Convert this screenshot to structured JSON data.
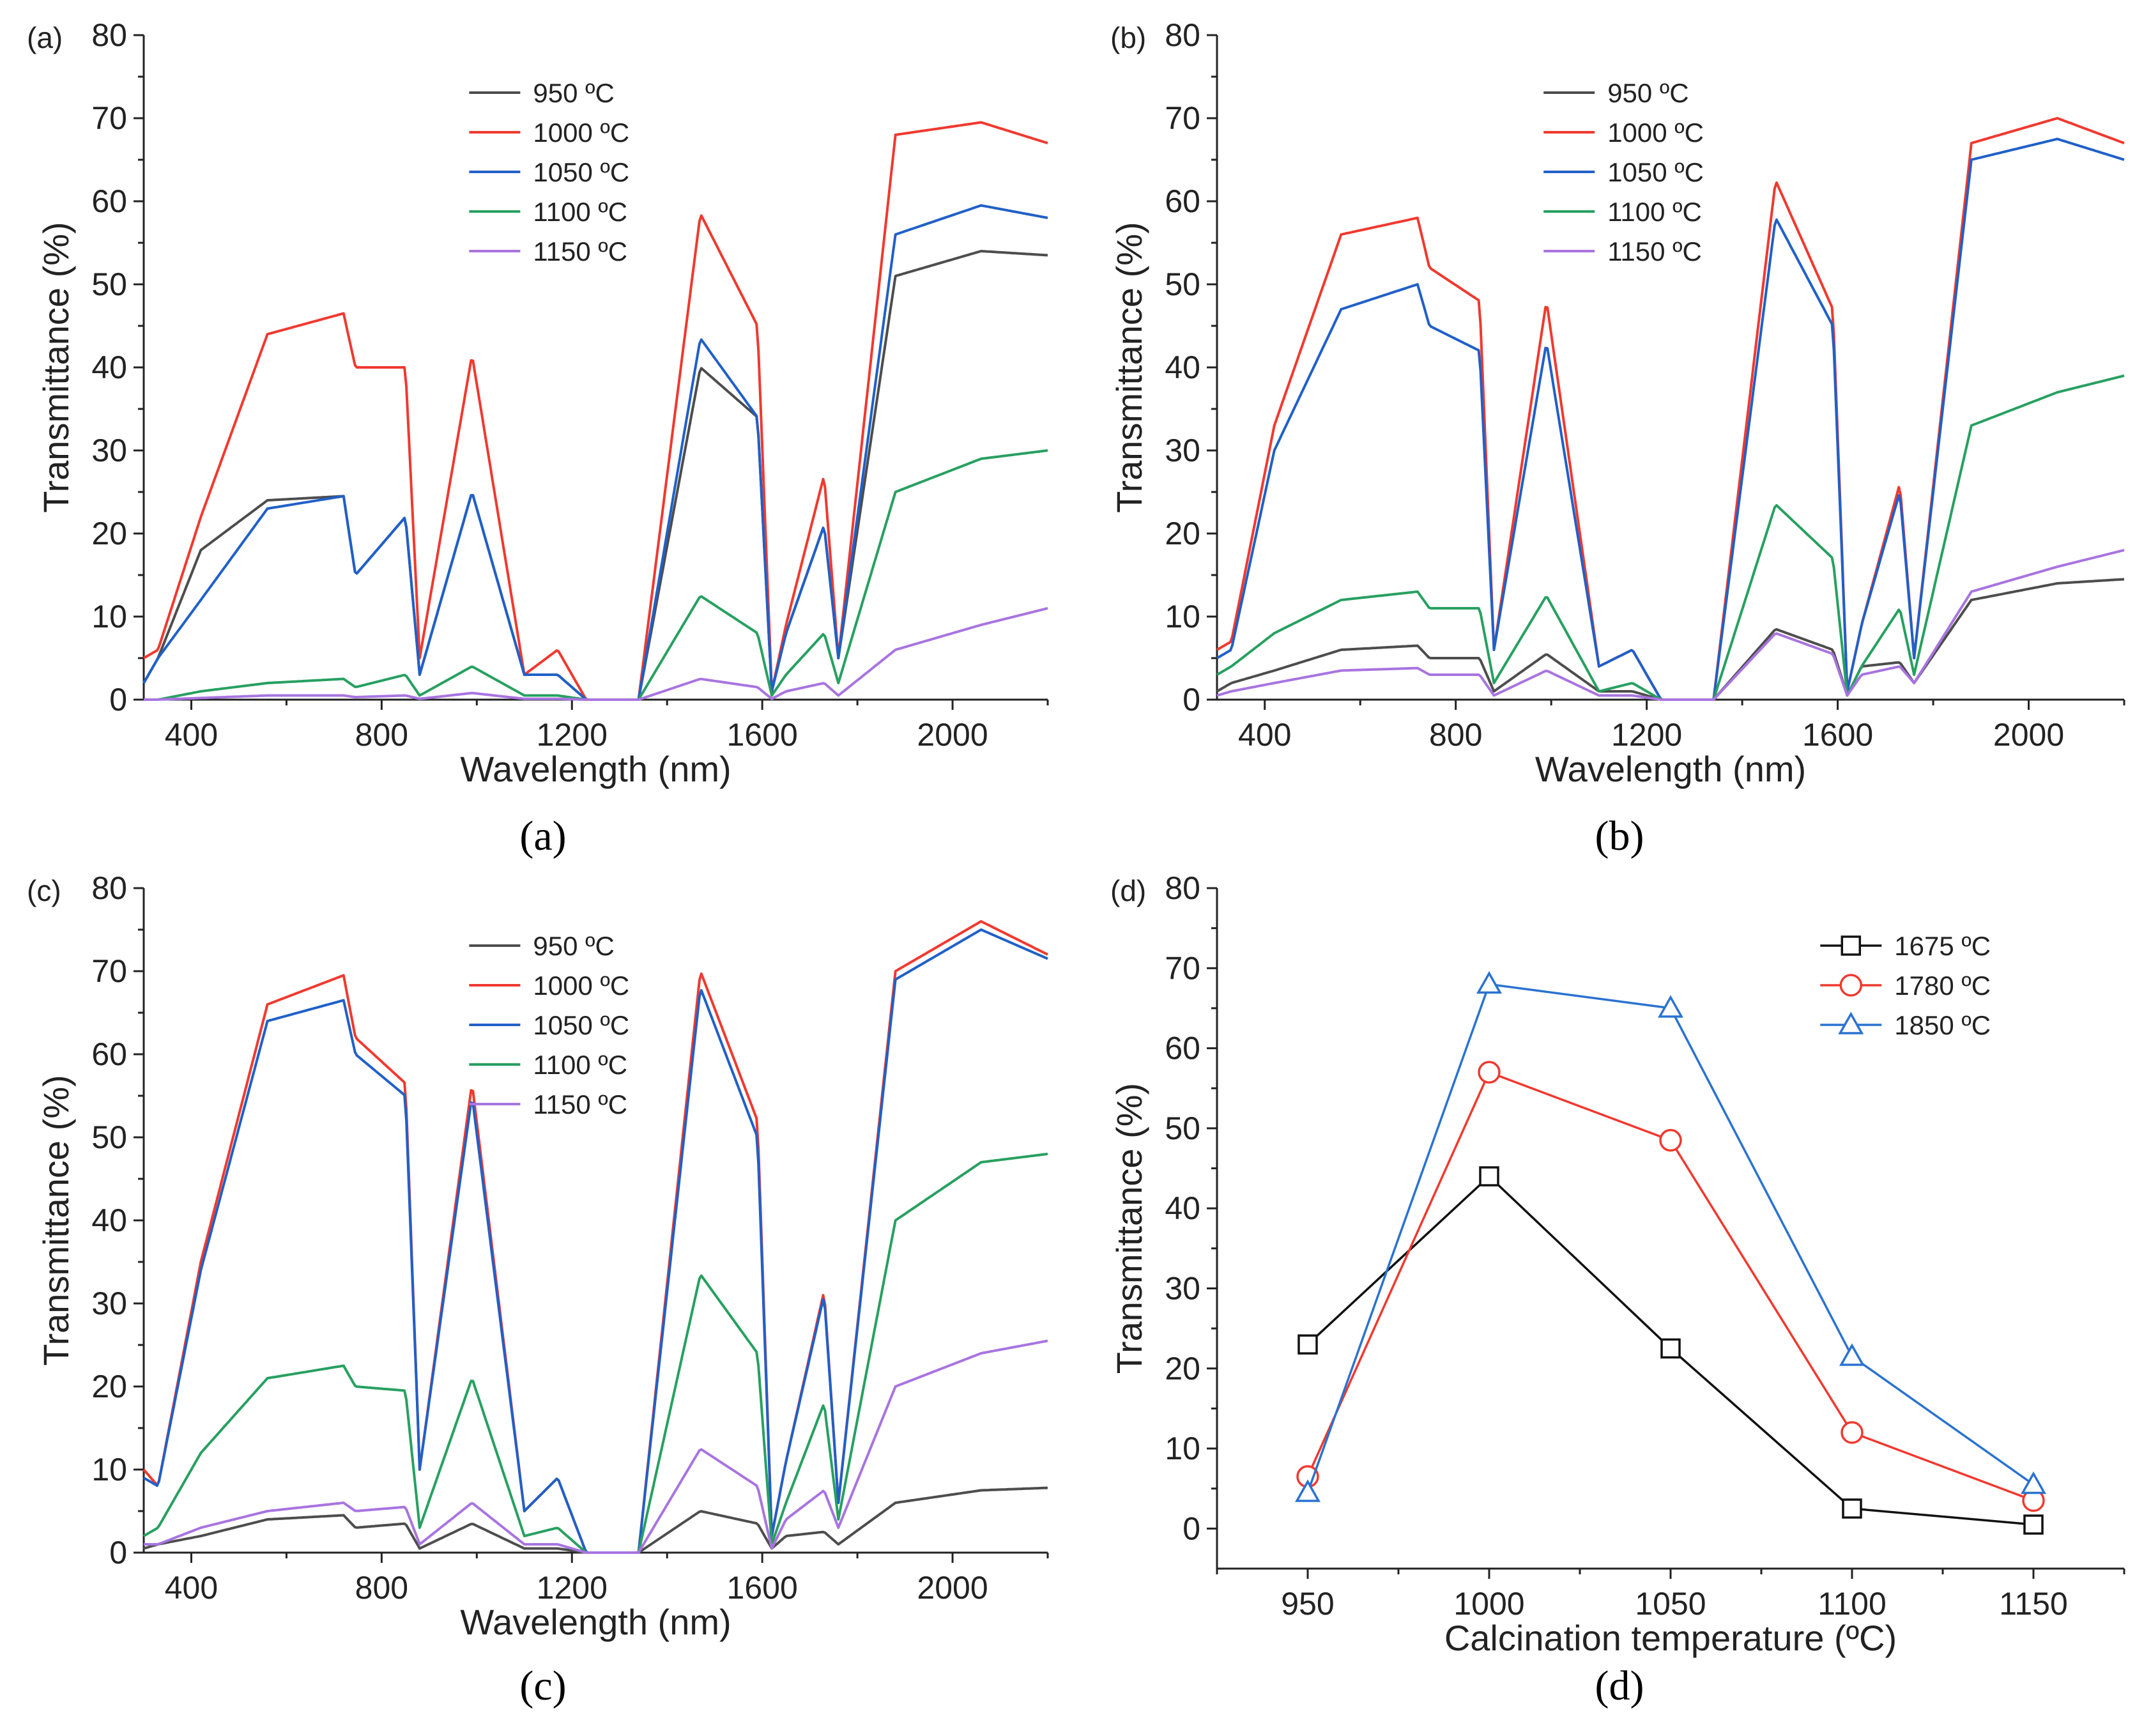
{
  "colors": {
    "950": "#4d4d4d",
    "1000": "#f0392f",
    "1050": "#2060c8",
    "1100": "#27a060",
    "1150": "#a874e0",
    "d1675": "#111111",
    "d1780": "#f0392f",
    "d1850": "#2a72d0"
  },
  "chart_data": [
    {
      "panel": "a",
      "corner_label": "(a)",
      "caption": "(a)",
      "type": "line",
      "xlabel": "Wavelength (nm)",
      "ylabel": "Transmittance (%)",
      "xlim": [
        300,
        2200
      ],
      "ylim": [
        0,
        80
      ],
      "xticks": [
        400,
        800,
        1200,
        1600,
        2000
      ],
      "yticks": [
        0,
        10,
        20,
        30,
        40,
        50,
        60,
        70,
        80
      ],
      "legend_position": "top-center",
      "series": [
        {
          "name": "950 ºC",
          "key": "950",
          "y": [
            2,
            5,
            18,
            24,
            24.5,
            15,
            22,
            3,
            25,
            3,
            3,
            0,
            0,
            40,
            34,
            1,
            8,
            21,
            5,
            51,
            54,
            53.5
          ]
        },
        {
          "name": "1000 ºC",
          "key": "1000",
          "y": [
            5,
            6,
            22,
            44,
            46.5,
            40,
            40,
            5,
            41.5,
            3,
            6,
            0,
            0,
            58.5,
            45,
            1,
            9,
            27,
            5,
            68,
            69.5,
            67
          ]
        },
        {
          "name": "1050 ºC",
          "key": "1050",
          "y": [
            2,
            5,
            12,
            23,
            24.5,
            15,
            22,
            3,
            25,
            3,
            3,
            0,
            0,
            43.5,
            34,
            1,
            8,
            21,
            5,
            56,
            59.5,
            58
          ]
        },
        {
          "name": "1100 ºC",
          "key": "1100",
          "y": [
            0,
            0,
            1,
            2,
            2.5,
            1.5,
            3,
            0.5,
            4,
            0.5,
            0.5,
            0,
            0,
            12.5,
            8,
            0.5,
            3,
            8,
            2,
            25,
            29,
            30
          ]
        },
        {
          "name": "1150 ºC",
          "key": "1150",
          "y": [
            0,
            0,
            0.2,
            0.5,
            0.5,
            0.3,
            0.5,
            0.1,
            0.8,
            0.1,
            0.1,
            0,
            0,
            2.5,
            1.5,
            0.1,
            1,
            2,
            0.5,
            6,
            9,
            11
          ]
        }
      ]
    },
    {
      "panel": "b",
      "corner_label": "(b)",
      "caption": "(b)",
      "type": "line",
      "xlabel": "Wavelength (nm)",
      "ylabel": "Transmittance (%)",
      "xlim": [
        300,
        2200
      ],
      "ylim": [
        0,
        80
      ],
      "xticks": [
        400,
        800,
        1200,
        1600,
        2000
      ],
      "yticks": [
        0,
        10,
        20,
        30,
        40,
        50,
        60,
        70,
        80
      ],
      "legend_position": "top-center",
      "series": [
        {
          "name": "950 ºC",
          "key": "950",
          "y": [
            1,
            2,
            3.5,
            6,
            6.5,
            5,
            5,
            1,
            5.5,
            1,
            1,
            0,
            0,
            8.5,
            6,
            0.5,
            4,
            4.5,
            2,
            12,
            14,
            14.5
          ]
        },
        {
          "name": "1000 ºC",
          "key": "1000",
          "y": [
            6,
            7,
            33,
            56,
            58,
            52,
            48,
            6,
            48,
            4,
            6,
            0,
            0,
            62.5,
            47,
            1,
            9,
            26,
            5,
            67,
            70,
            67
          ]
        },
        {
          "name": "1050 ºC",
          "key": "1050",
          "y": [
            5,
            6,
            30,
            47,
            50,
            45,
            42,
            6,
            43,
            4,
            6,
            0,
            0,
            58,
            45,
            1,
            9,
            25,
            5,
            65,
            67.5,
            65
          ]
        },
        {
          "name": "1100 ºC",
          "key": "1100",
          "y": [
            3,
            4,
            8,
            12,
            13,
            11,
            11,
            2,
            12.5,
            1,
            2,
            0,
            0,
            23.5,
            17,
            0.5,
            4,
            11,
            3,
            33,
            37,
            39
          ]
        },
        {
          "name": "1150 ºC",
          "key": "1150",
          "y": [
            0.5,
            1,
            2,
            3.5,
            3.8,
            3,
            3,
            0.5,
            3.5,
            0.5,
            0.5,
            0,
            0,
            8,
            5.5,
            0.5,
            3,
            4,
            2,
            13,
            16,
            18
          ]
        }
      ]
    },
    {
      "panel": "c",
      "corner_label": "(c)",
      "caption": "(c)",
      "type": "line",
      "xlabel": "Wavelength (nm)",
      "ylabel": "Transmittance (%)",
      "xlim": [
        300,
        2200
      ],
      "ylim": [
        0,
        80
      ],
      "xticks": [
        400,
        800,
        1200,
        1600,
        2000
      ],
      "yticks": [
        0,
        10,
        20,
        30,
        40,
        50,
        60,
        70,
        80
      ],
      "legend_position": "top-center",
      "series": [
        {
          "name": "950 ºC",
          "key": "950",
          "y": [
            0.5,
            1,
            2,
            4,
            4.5,
            3,
            3.5,
            0.5,
            3.5,
            0.5,
            0.5,
            0,
            0,
            5,
            3.5,
            0.5,
            2,
            2.5,
            1,
            6,
            7.5,
            7.8
          ]
        },
        {
          "name": "1000 ºC",
          "key": "1000",
          "y": [
            10,
            8,
            35,
            66,
            69.5,
            62,
            56.5,
            10,
            56.5,
            5,
            9,
            0,
            0,
            70,
            52,
            2,
            11,
            31.5,
            6,
            70,
            76,
            72
          ]
        },
        {
          "name": "1050 ºC",
          "key": "1050",
          "y": [
            9,
            8,
            34,
            64,
            66.5,
            60,
            55,
            10,
            55,
            5,
            9,
            0,
            0,
            68,
            50,
            2,
            11,
            31,
            6,
            69,
            75,
            71.5
          ]
        },
        {
          "name": "1100 ºC",
          "key": "1100",
          "y": [
            2,
            3,
            12,
            21,
            22.5,
            20,
            19.5,
            3,
            21,
            2,
            3,
            0,
            0,
            33.5,
            24,
            1,
            6,
            18,
            4,
            40,
            47,
            48
          ]
        },
        {
          "name": "1150 ºC",
          "key": "1150",
          "y": [
            1,
            1,
            3,
            5,
            6,
            5,
            5.5,
            1,
            6,
            1,
            1,
            0,
            0,
            12.5,
            8,
            0.5,
            4,
            7.5,
            3,
            20,
            24,
            25.5
          ]
        }
      ]
    },
    {
      "panel": "d",
      "corner_label": "(d)",
      "caption": "(d)",
      "type": "line",
      "xlabel": "Calcination temperature (ºC)",
      "ylabel": "Transmittance (%)",
      "xlim": [
        925,
        1175
      ],
      "ylim": [
        -5,
        80
      ],
      "x": [
        950,
        1000,
        1050,
        1100,
        1150
      ],
      "xticks": [
        950,
        1000,
        1050,
        1100,
        1150
      ],
      "yticks": [
        0,
        10,
        20,
        30,
        40,
        50,
        60,
        70,
        80
      ],
      "legend_position": "top-right",
      "series": [
        {
          "name": "1675 ºC",
          "key": "d1675",
          "marker": "square",
          "values": [
            23,
            44,
            22.5,
            2.5,
            0.5
          ]
        },
        {
          "name": "1780 ºC",
          "key": "d1780",
          "marker": "circle",
          "values": [
            6.5,
            57,
            48.5,
            12,
            3.5
          ]
        },
        {
          "name": "1850 ºC",
          "key": "d1850",
          "marker": "triangle",
          "values": [
            4.5,
            68,
            65,
            21.5,
            5.5
          ]
        }
      ]
    }
  ]
}
